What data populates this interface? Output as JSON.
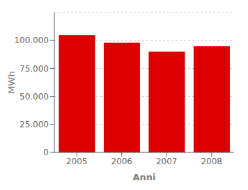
{
  "chart_data": {
    "type": "bar",
    "categories": [
      "2005",
      "2006",
      "2007",
      "2008"
    ],
    "values": [
      105000,
      98000,
      90000,
      95000
    ],
    "color": "#dd0000",
    "xlabel": "Anni",
    "ylabel": "MWh",
    "ylim": [
      0,
      125000
    ],
    "yticks": [
      0,
      {
        "value": 25000,
        "label": "25.000"
      },
      {
        "value": 50000,
        "label": "50.000"
      },
      {
        "value": 75000,
        "label": "75.000"
      },
      {
        "value": 100000,
        "label": "100.000"
      }
    ],
    "grid": true
  }
}
